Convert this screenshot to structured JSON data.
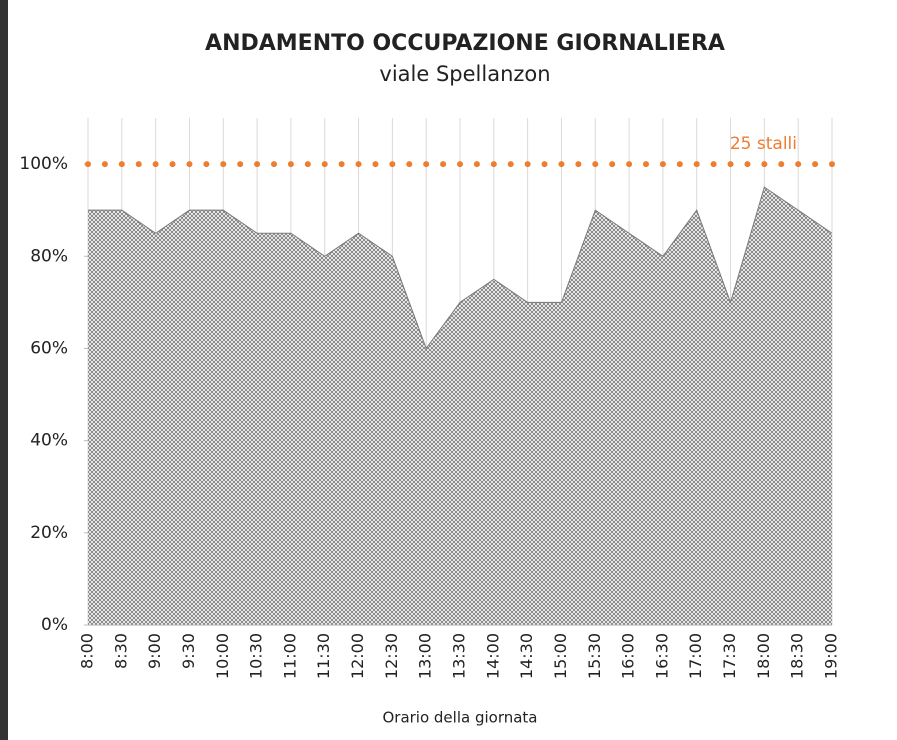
{
  "chart_data": {
    "type": "area",
    "title": "ANDAMENTO OCCUPAZIONE GIORNALIERA",
    "subtitle": "viale Spellanzon",
    "x_label": "Orario della giornata",
    "categories": [
      "8:00",
      "8:30",
      "9:00",
      "9:30",
      "10:00",
      "10:30",
      "11:00",
      "11:30",
      "12:00",
      "12:30",
      "13:00",
      "13:30",
      "14:00",
      "14:30",
      "15:00",
      "15:30",
      "16:00",
      "16:30",
      "17:00",
      "17:30",
      "18:00",
      "18:30",
      "19:00"
    ],
    "values": [
      90,
      90,
      85,
      90,
      90,
      85,
      85,
      80,
      85,
      80,
      60,
      70,
      75,
      70,
      70,
      90,
      85,
      80,
      90,
      70,
      95,
      90,
      85
    ],
    "color": "#7a7a7a",
    "ylim": [
      0,
      110
    ],
    "yticks": [
      {
        "value": 0,
        "label": "0%"
      },
      {
        "value": 20,
        "label": "20%"
      },
      {
        "value": 40,
        "label": "40%"
      },
      {
        "value": 60,
        "label": "60%"
      },
      {
        "value": 80,
        "label": "80%"
      },
      {
        "value": 100,
        "label": "100%"
      }
    ],
    "reference_line": {
      "value": 100,
      "label": "25 stalli",
      "color": "#ed7d31"
    },
    "grid": "vertical"
  }
}
